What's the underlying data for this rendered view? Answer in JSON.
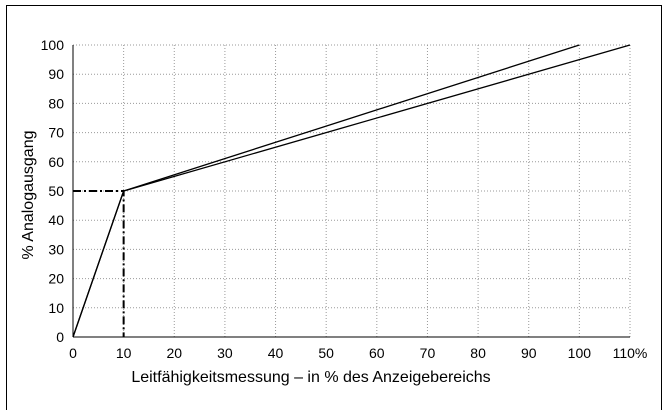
{
  "chart_data": {
    "type": "line",
    "xlabel": "Leitfähigkeitsmessung – in % des Anzeigebereichs",
    "ylabel": "% Analogausgang",
    "xlim": [
      0,
      110
    ],
    "ylim": [
      0,
      100
    ],
    "x_ticks": [
      "0",
      "10",
      "20",
      "30",
      "40",
      "50",
      "60",
      "70",
      "80",
      "90",
      "100",
      "110%"
    ],
    "y_ticks": [
      "0",
      "10",
      "20",
      "30",
      "40",
      "50",
      "60",
      "70",
      "80",
      "90",
      "100"
    ],
    "grid": true,
    "series": [
      {
        "points": [
          [
            0,
            0
          ],
          [
            10,
            50
          ],
          [
            100,
            100
          ]
        ]
      },
      {
        "points": [
          [
            0,
            0
          ],
          [
            10,
            50
          ],
          [
            110,
            100
          ]
        ]
      }
    ],
    "reference_lines": [
      {
        "style": "dash-dot",
        "points": [
          [
            0,
            50
          ],
          [
            10,
            50
          ],
          [
            10,
            0
          ]
        ]
      }
    ]
  }
}
